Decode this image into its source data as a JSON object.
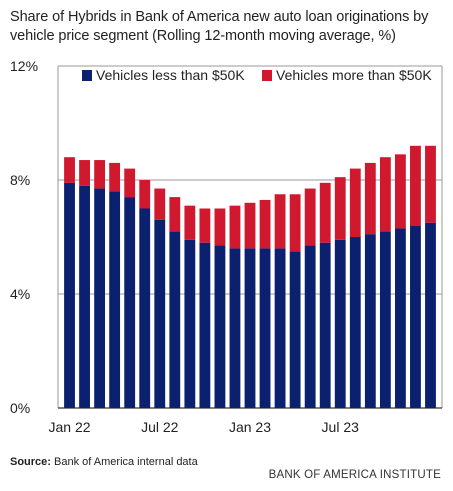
{
  "chart_data": {
    "type": "bar",
    "stacked": true,
    "title": "Share of Hybrids in Bank of America new auto loan originations by vehicle price segment (Rolling 12-month moving average, %)",
    "ylim": [
      0,
      12
    ],
    "yticks": [
      0,
      4,
      8,
      12
    ],
    "ytick_labels": [
      "0%",
      "4%",
      "8%",
      "12%"
    ],
    "grid": true,
    "legend_position": "top",
    "categories": [
      "Jan 22",
      "Feb 22",
      "Mar 22",
      "Apr 22",
      "May 22",
      "Jun 22",
      "Jul 22",
      "Aug 22",
      "Sep 22",
      "Oct 22",
      "Nov 22",
      "Dec 22",
      "Jan 23",
      "Feb 23",
      "Mar 23",
      "Apr 23",
      "May 23",
      "Jun 23",
      "Jul 23",
      "Aug 23",
      "Sep 23",
      "Oct 23",
      "Nov 23",
      "Dec 23",
      "Jan 24"
    ],
    "xtick_labels": [
      {
        "index": 0,
        "label": "Jan 22"
      },
      {
        "index": 6,
        "label": "Jul 22"
      },
      {
        "index": 12,
        "label": "Jan 23"
      },
      {
        "index": 18,
        "label": "Jul 23"
      }
    ],
    "series": [
      {
        "name": "Vehicles less than $50K",
        "color": "#0b2170",
        "values": [
          7.9,
          7.8,
          7.7,
          7.6,
          7.4,
          7.0,
          6.6,
          6.2,
          5.9,
          5.8,
          5.7,
          5.6,
          5.6,
          5.6,
          5.6,
          5.5,
          5.7,
          5.8,
          5.9,
          6.0,
          6.1,
          6.2,
          6.3,
          6.4,
          6.5
        ]
      },
      {
        "name": "Vehicles more than $50K",
        "color": "#d0182f",
        "values": [
          0.9,
          0.9,
          1.0,
          1.0,
          1.0,
          1.0,
          1.1,
          1.2,
          1.2,
          1.2,
          1.3,
          1.5,
          1.6,
          1.7,
          1.9,
          2.0,
          2.0,
          2.1,
          2.2,
          2.4,
          2.5,
          2.6,
          2.6,
          2.8,
          2.7
        ]
      }
    ]
  },
  "source": {
    "label": "Source:",
    "text": "Bank of America internal data"
  },
  "brand": "BANK OF AMERICA INSTITUTE"
}
